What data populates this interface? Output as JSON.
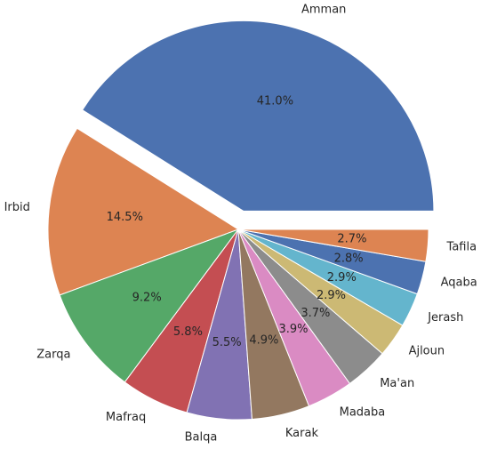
{
  "chart_data": {
    "type": "pie",
    "categories": [
      "Amman",
      "Irbid",
      "Zarqa",
      "Mafraq",
      "Balqa",
      "Karak",
      "Madaba",
      "Ma'an",
      "Ajloun",
      "Jerash",
      "Aqaba",
      "Tafila"
    ],
    "values": [
      41.0,
      14.5,
      9.2,
      5.8,
      5.5,
      4.9,
      3.9,
      3.7,
      2.9,
      2.9,
      2.8,
      2.7
    ],
    "value_labels": [
      "41.0%",
      "14.5%",
      "9.2%",
      "5.8%",
      "5.5%",
      "4.9%",
      "3.9%",
      "3.7%",
      "2.9%",
      "2.9%",
      "2.8%",
      "2.7%"
    ],
    "colors": [
      "#4c72b0",
      "#dd8452",
      "#55a868",
      "#c44e52",
      "#8172b3",
      "#937860",
      "#da8bc3",
      "#8c8c8c",
      "#ccb974",
      "#64b5cd",
      "#4c72b0",
      "#dd8452"
    ],
    "explode": [
      0.1,
      0,
      0,
      0,
      0,
      0,
      0,
      0,
      0,
      0,
      0,
      0
    ]
  }
}
